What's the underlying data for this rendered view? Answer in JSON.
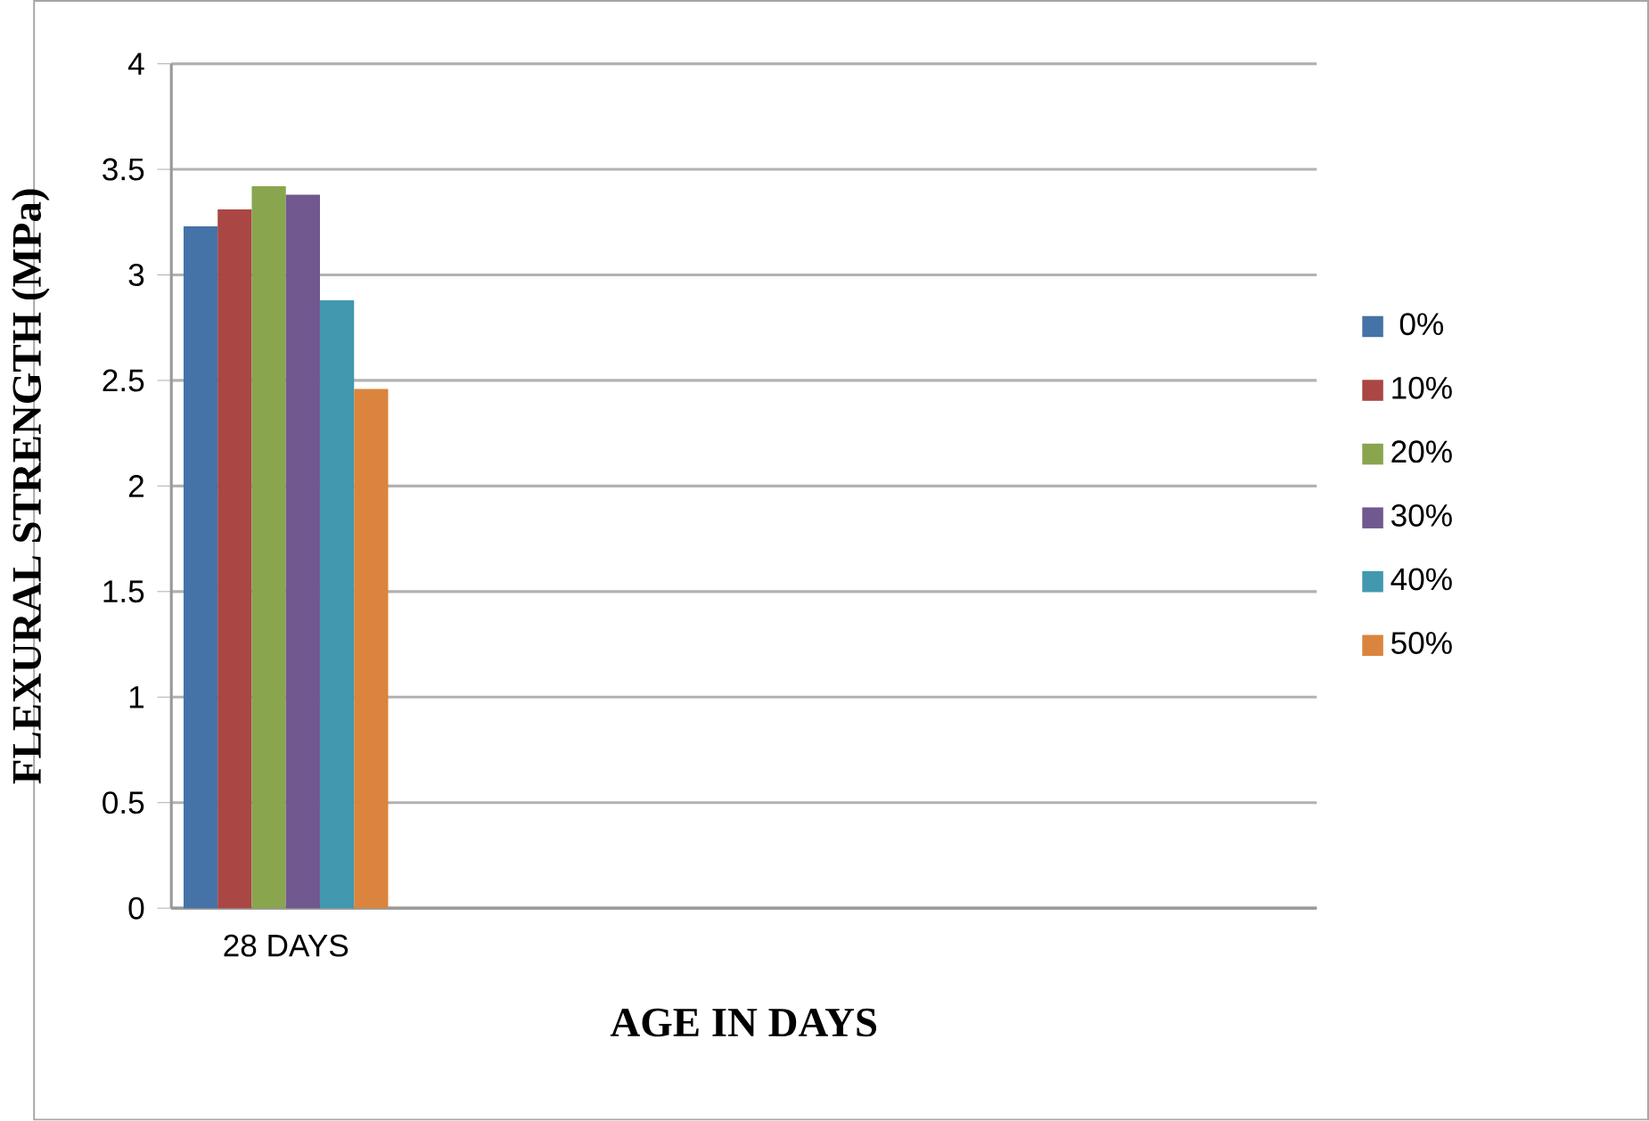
{
  "chart_data": {
    "type": "bar",
    "xlabel": "AGE IN DAYS",
    "ylabel": "FLEXURAL STRENGTH (MPa)",
    "categories": [
      "28 DAYS",
      null,
      null,
      null,
      null
    ],
    "series": [
      {
        "name": "0%",
        "color": "#4572a7",
        "values": [
          3.23,
          null,
          null,
          null,
          null
        ]
      },
      {
        "name": "10%",
        "color": "#aa4643",
        "values": [
          3.31,
          null,
          null,
          null,
          null
        ]
      },
      {
        "name": "20%",
        "color": "#89a54e",
        "values": [
          3.42,
          null,
          null,
          null,
          null
        ]
      },
      {
        "name": "30%",
        "color": "#71588f",
        "values": [
          3.38,
          null,
          null,
          null,
          null
        ]
      },
      {
        "name": "40%",
        "color": "#4198af",
        "values": [
          2.88,
          null,
          null,
          null,
          null
        ]
      },
      {
        "name": "50%",
        "color": "#db843d",
        "values": [
          2.46,
          null,
          null,
          null,
          null
        ]
      }
    ],
    "ylim": [
      0,
      4
    ],
    "yticks": [
      0,
      0.5,
      1,
      1.5,
      2,
      2.5,
      3,
      3.5,
      4
    ],
    "grid": "y",
    "legend": "right"
  }
}
